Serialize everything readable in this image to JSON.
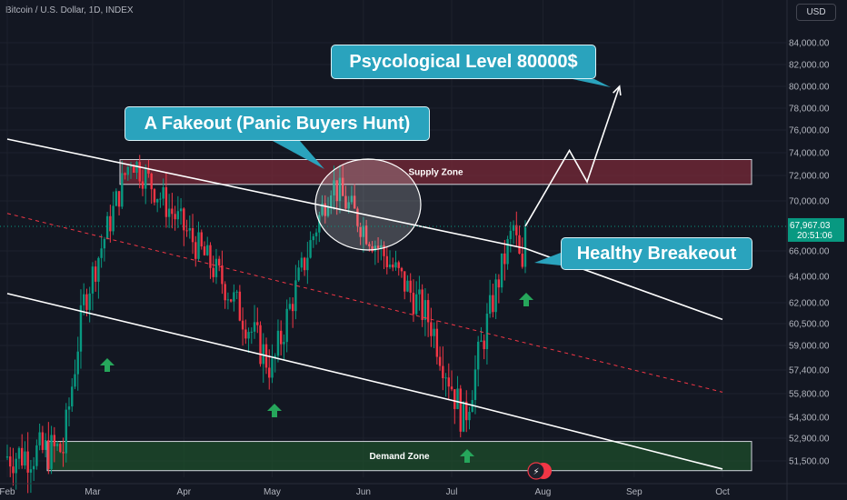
{
  "header": {
    "title": "Bitcoin / U.S. Dollar, 1D, INDEX",
    "currency_button": "USD"
  },
  "price_tag": {
    "price": "67,967.03",
    "countdown": "20:51:06"
  },
  "colors": {
    "background": "#131722",
    "up_candle": "#089981",
    "down_candle": "#f23645",
    "callout": "#2aa3bd",
    "supply_zone": "#7a2a38",
    "demand_zone": "#1e4d2b",
    "price_tag": "#089981"
  },
  "icons": [
    "up-arrow-icon",
    "bolt-flag-icon"
  ],
  "chart_data": {
    "type": "candlestick",
    "title": "",
    "xlabel": "",
    "ylabel": "",
    "ylim": [
      50800,
      85500
    ],
    "x_ticks": [
      "Feb",
      "Mar",
      "Apr",
      "May",
      "Jun",
      "Jul",
      "Aug",
      "Sep",
      "Oct"
    ],
    "y_ticks": [
      "84,000.00",
      "82,000.00",
      "80,000.00",
      "78,000.00",
      "76,000.00",
      "74,000.00",
      "72,000.00",
      "70,000.00",
      "66,000.00",
      "64,000.00",
      "62,000.00",
      "60,500.00",
      "59,000.00",
      "57,400.00",
      "55,800.00",
      "54,300.00",
      "52,900.00",
      "51,500.00"
    ],
    "key_prices": [
      {
        "date": "2024-02-26",
        "close": 62000
      },
      {
        "date": "2024-03-14",
        "close": 73500
      },
      {
        "date": "2024-04-13",
        "close": 64000
      },
      {
        "date": "2024-05-01",
        "close": 57400
      },
      {
        "date": "2024-05-21",
        "close": 71500
      },
      {
        "date": "2024-06-24",
        "close": 60500
      },
      {
        "date": "2024-07-05",
        "close": 54000
      },
      {
        "date": "2024-07-22",
        "close": 67900
      },
      {
        "date": "2024-07-25",
        "close": 64000
      },
      {
        "date": "2024-07-26",
        "close": 67967
      }
    ],
    "zones": [
      {
        "label": "Supply Zone",
        "low": 71300,
        "high": 73400
      },
      {
        "label": "Demand  Zone",
        "low": 50900,
        "high": 52700
      }
    ],
    "channel": [
      {
        "name": "upper",
        "points": [
          [
            "2024-02-01",
            75200
          ],
          [
            "2024-07-26",
            66200
          ],
          [
            "2024-10-01",
            60800
          ]
        ]
      },
      {
        "name": "lower",
        "points": [
          [
            "2024-02-01",
            62700
          ],
          [
            "2024-07-05",
            55200
          ],
          [
            "2024-10-01",
            51000
          ]
        ]
      },
      {
        "name": "mid",
        "style": "dashed",
        "points": [
          [
            "2024-02-01",
            69000
          ],
          [
            "2024-10-01",
            55900
          ]
        ]
      }
    ],
    "projection": [
      [
        "2024-07-26",
        67967
      ],
      [
        "2024-08-10",
        74200
      ],
      [
        "2024-08-16",
        71500
      ],
      [
        "2024-08-27",
        80000
      ]
    ],
    "annotations": [
      "A Fakeout (Panic Buyers Hunt)",
      "Psycological Level 80000$",
      "Healthy Breakeout"
    ]
  }
}
